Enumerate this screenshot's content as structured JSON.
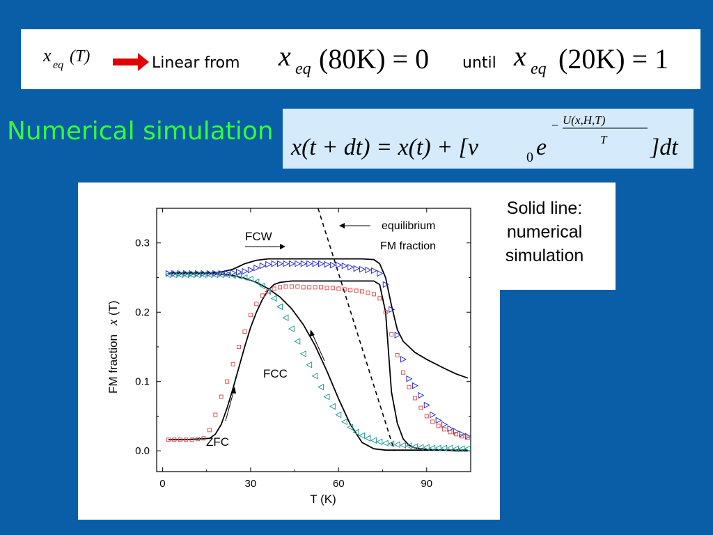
{
  "header": {
    "lhs_label": "x_eq(T)",
    "lhs_var": "x",
    "lhs_sub": "eq",
    "lhs_arg": "(T)",
    "linear_from": "Linear from",
    "eq1_var": "x",
    "eq1_sub": "eq",
    "eq1_arg": "(80K) = 0",
    "until": "until",
    "eq2_var": "x",
    "eq2_sub": "eq",
    "eq2_arg": "(20K) = 1"
  },
  "simulation": {
    "title": "Numerical simulation",
    "equation_main": "x(t + dt) = x(t) + [v",
    "equation_sub0": "0",
    "equation_e": "e",
    "equation_exponent_num": "U(x,H,T)",
    "equation_exponent_den": "T",
    "equation_minus": "−",
    "equation_tail": "]dt"
  },
  "note": {
    "line1": "Solid line:",
    "line2": "numerical",
    "line3": "simulation"
  },
  "colors": {
    "background": "#0a5ea8",
    "title": "#33ff33",
    "arrow": "#ff0000",
    "fcw_marker": "#2a2ad4",
    "fcc_marker": "#2a9a9a",
    "zfc_marker": "#e05050"
  },
  "chart_data": {
    "type": "scatter",
    "xlabel": "T (K)",
    "ylabel_prefix": "FM fraction",
    "ylabel_var": "x",
    "ylabel_suffix": "(T)",
    "xlim": [
      -2,
      105
    ],
    "ylim": [
      -0.03,
      0.35
    ],
    "xticks": [
      0,
      30,
      60,
      90
    ],
    "yticks": [
      0.0,
      0.1,
      0.2,
      0.3
    ],
    "xtick_labels": [
      "0",
      "30",
      "60",
      "90"
    ],
    "ytick_labels": [
      "0.0",
      "0.1",
      "0.2",
      "0.3"
    ],
    "annotations": {
      "fcw": "FCW",
      "fcc": "FCC",
      "zfc": "ZFC",
      "equilibrium_1": "equilibrium",
      "equilibrium_2": "FM fraction"
    },
    "series": [
      {
        "name": "FCW",
        "marker": "triangle-right",
        "x": [
          2,
          4,
          6,
          8,
          10,
          12,
          14,
          16,
          18,
          20,
          22,
          24,
          26,
          28,
          30,
          32,
          34,
          36,
          38,
          40,
          42,
          44,
          46,
          48,
          50,
          52,
          54,
          56,
          58,
          60,
          62,
          64,
          66,
          68,
          70,
          72,
          74,
          76,
          78,
          80,
          82,
          84,
          86,
          88,
          90,
          92,
          94,
          96,
          98,
          100,
          102,
          104
        ],
        "y": [
          0.256,
          0.256,
          0.256,
          0.256,
          0.256,
          0.256,
          0.256,
          0.256,
          0.256,
          0.256,
          0.256,
          0.257,
          0.258,
          0.259,
          0.261,
          0.264,
          0.267,
          0.269,
          0.27,
          0.27,
          0.27,
          0.27,
          0.27,
          0.27,
          0.27,
          0.27,
          0.27,
          0.269,
          0.268,
          0.268,
          0.267,
          0.265,
          0.263,
          0.262,
          0.261,
          0.26,
          0.256,
          0.24,
          0.204,
          0.167,
          0.132,
          0.104,
          0.094,
          0.08,
          0.066,
          0.052,
          0.044,
          0.038,
          0.032,
          0.028,
          0.024,
          0.021
        ]
      },
      {
        "name": "FCC",
        "marker": "triangle-left",
        "x": [
          2,
          4,
          6,
          8,
          10,
          12,
          14,
          16,
          18,
          20,
          22,
          24,
          26,
          28,
          30,
          32,
          34,
          36,
          38,
          40,
          42,
          44,
          46,
          48,
          50,
          52,
          54,
          56,
          58,
          60,
          62,
          64,
          66,
          68,
          70,
          72,
          74,
          76,
          78,
          80,
          82,
          84,
          86,
          88,
          90,
          92,
          94,
          96,
          98,
          100,
          102,
          104
        ],
        "y": [
          0.254,
          0.254,
          0.254,
          0.254,
          0.254,
          0.254,
          0.254,
          0.254,
          0.254,
          0.254,
          0.254,
          0.253,
          0.252,
          0.25,
          0.248,
          0.244,
          0.238,
          0.23,
          0.22,
          0.208,
          0.192,
          0.176,
          0.158,
          0.14,
          0.124,
          0.108,
          0.092,
          0.078,
          0.064,
          0.052,
          0.042,
          0.034,
          0.027,
          0.022,
          0.018,
          0.015,
          0.013,
          0.011,
          0.01,
          0.009,
          0.008,
          0.007,
          0.006,
          0.005,
          0.005,
          0.004,
          0.004,
          0.004,
          0.004,
          0.003,
          0.003,
          0.003
        ]
      },
      {
        "name": "ZFC",
        "marker": "square",
        "x": [
          2,
          4,
          6,
          8,
          10,
          12,
          14,
          16,
          18,
          20,
          22,
          24,
          26,
          28,
          30,
          32,
          34,
          36,
          38,
          40,
          42,
          44,
          46,
          48,
          50,
          52,
          54,
          56,
          58,
          60,
          62,
          64,
          66,
          68,
          70,
          72,
          74,
          76,
          78,
          80,
          82,
          84,
          86,
          88,
          90,
          92,
          94,
          96,
          98,
          100,
          102,
          104
        ],
        "y": [
          0.016,
          0.016,
          0.016,
          0.016,
          0.016,
          0.017,
          0.018,
          0.03,
          0.052,
          0.078,
          0.1,
          0.125,
          0.15,
          0.172,
          0.196,
          0.212,
          0.224,
          0.23,
          0.234,
          0.236,
          0.237,
          0.237,
          0.237,
          0.236,
          0.236,
          0.236,
          0.236,
          0.235,
          0.235,
          0.234,
          0.233,
          0.232,
          0.231,
          0.23,
          0.228,
          0.226,
          0.22,
          0.2,
          0.168,
          0.138,
          0.113,
          0.092,
          0.076,
          0.062,
          0.05,
          0.042,
          0.036,
          0.031,
          0.027,
          0.024,
          0.021,
          0.019
        ]
      }
    ],
    "lines": [
      {
        "name": "FCW simulation",
        "x": [
          2,
          10,
          16,
          20,
          24,
          28,
          32,
          36,
          40,
          44,
          50,
          56,
          60,
          64,
          68,
          72,
          74,
          76,
          78,
          80,
          82,
          86,
          90,
          96,
          100,
          104
        ],
        "y": [
          0.257,
          0.257,
          0.257,
          0.258,
          0.262,
          0.27,
          0.275,
          0.277,
          0.277,
          0.277,
          0.277,
          0.277,
          0.277,
          0.277,
          0.277,
          0.276,
          0.27,
          0.25,
          0.21,
          0.175,
          0.158,
          0.142,
          0.132,
          0.119,
          0.111,
          0.105
        ]
      },
      {
        "name": "FCC simulation",
        "x": [
          2,
          10,
          16,
          20,
          24,
          28,
          32,
          36,
          40,
          44,
          48,
          52,
          56,
          60,
          64,
          68,
          72,
          76,
          80,
          86,
          92,
          98,
          104
        ],
        "y": [
          0.256,
          0.256,
          0.256,
          0.255,
          0.253,
          0.249,
          0.243,
          0.234,
          0.222,
          0.205,
          0.182,
          0.152,
          0.115,
          0.075,
          0.038,
          0.012,
          0.003,
          0.001,
          0.001,
          0.001,
          0.001,
          0.001,
          0.001
        ]
      },
      {
        "name": "ZFC simulation",
        "x": [
          2,
          8,
          12,
          16,
          18,
          20,
          22,
          24,
          26,
          28,
          30,
          32,
          34,
          36,
          38,
          40,
          44,
          50,
          56,
          60,
          64,
          68,
          72,
          74,
          76,
          78,
          80,
          82,
          84,
          86,
          90,
          96,
          100,
          104
        ],
        "y": [
          0.016,
          0.016,
          0.017,
          0.018,
          0.024,
          0.038,
          0.062,
          0.09,
          0.12,
          0.15,
          0.178,
          0.2,
          0.218,
          0.232,
          0.24,
          0.243,
          0.245,
          0.245,
          0.245,
          0.245,
          0.245,
          0.245,
          0.245,
          0.24,
          0.2,
          0.085,
          0.04,
          0.017,
          0.008,
          0.004,
          0.002,
          0.001,
          0.0,
          0.0
        ]
      },
      {
        "name": "equilibrium FM fraction",
        "style": "dashed",
        "x": [
          53,
          79
        ],
        "y": [
          0.35,
          0.0
        ]
      }
    ]
  }
}
